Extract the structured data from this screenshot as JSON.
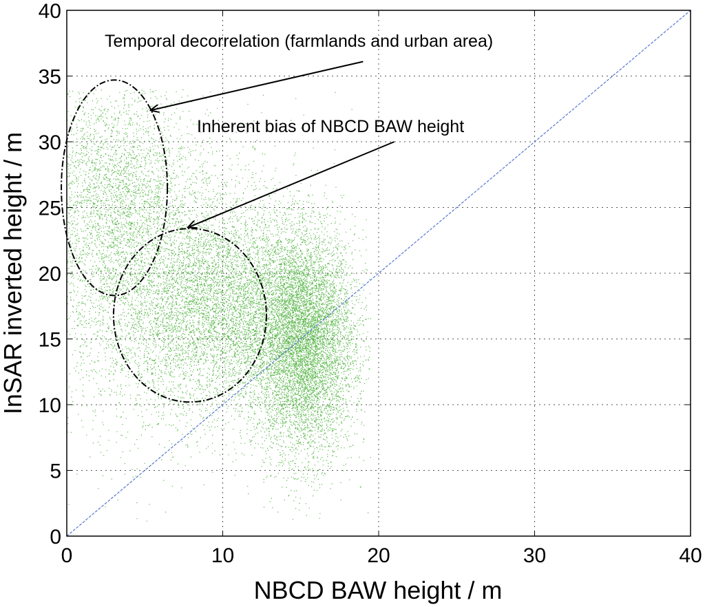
{
  "chart_data": {
    "type": "scatter",
    "title": "",
    "xlabel": "NBCD BAW height / m",
    "ylabel": "InSAR inverted height / m",
    "xlim": [
      0,
      40
    ],
    "ylim": [
      0,
      40
    ],
    "xticks": [
      "0",
      "10",
      "20",
      "30",
      "40"
    ],
    "yticks": [
      "0",
      "5",
      "10",
      "15",
      "20",
      "25",
      "30",
      "35",
      "40"
    ],
    "grid": true,
    "point_color": "#3daa2a",
    "reference_line": {
      "color": "#5577cc",
      "from": [
        0,
        0
      ],
      "to": [
        40,
        40
      ]
    },
    "point_clusters": [
      {
        "cx": 15.2,
        "cy": 14.5,
        "sx": 1.6,
        "sy": 4.2,
        "weight": 0.55
      },
      {
        "cx": 10.5,
        "cy": 17.5,
        "sx": 3.5,
        "sy": 3.8,
        "weight": 0.22
      },
      {
        "cx": 6.0,
        "cy": 19.0,
        "sx": 4.5,
        "sy": 6.0,
        "weight": 0.13
      },
      {
        "cx": 3.0,
        "cy": 26.0,
        "sx": 2.5,
        "sy": 4.5,
        "weight": 0.1
      }
    ],
    "point_count_drawn": 26000,
    "ellipses": [
      {
        "cx": 3.05,
        "cy": 26.5,
        "rx": 3.4,
        "ry": 8.2
      },
      {
        "cx": 7.9,
        "cy": 16.8,
        "rx": 4.9,
        "ry": 6.6
      }
    ],
    "annotations": [
      {
        "text": "Temporal decorrelation (farmlands and urban area)",
        "arrow_from": [
          19.0,
          36.1
        ],
        "arrow_to": [
          5.4,
          32.4
        ]
      },
      {
        "text": "Inherent bias of NBCD BAW height",
        "arrow_from": [
          21.0,
          30.0
        ],
        "arrow_to": [
          7.8,
          23.5
        ]
      }
    ]
  }
}
